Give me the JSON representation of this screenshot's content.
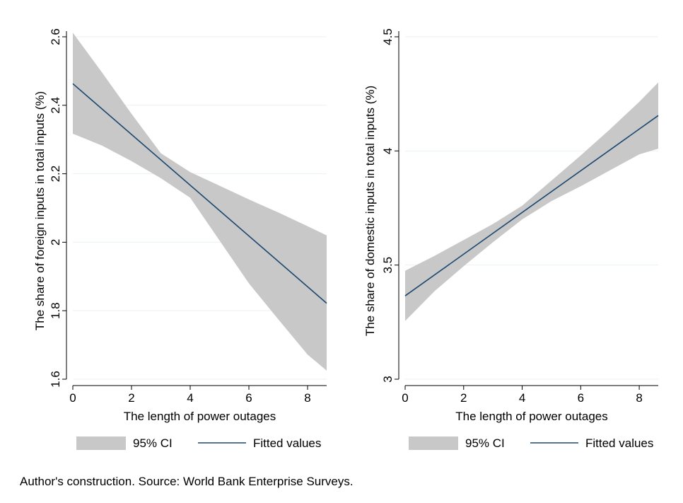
{
  "figure": {
    "note": "Author's construction. Source: World Bank Enterprise Surveys.",
    "colors": {
      "band": "#c8c8c8",
      "line": "#1a476f",
      "grid": "#eaf2f3",
      "axis": "#000000"
    }
  },
  "chart_data": [
    {
      "type": "line",
      "title": "",
      "xlabel": "The length of power outages",
      "ylabel": "The share of foreign inputs in total inputs (%)",
      "xlim": [
        0,
        8.65
      ],
      "ylim": [
        1.6,
        2.6
      ],
      "xticks": [
        0,
        2,
        4,
        6,
        8
      ],
      "yticks": [
        1.6,
        1.8,
        2,
        2.2,
        2.4,
        2.6
      ],
      "xtick_labels": [
        "0",
        "2",
        "4",
        "6",
        "8"
      ],
      "ytick_labels": [
        "1.6",
        "1.8",
        "2",
        "2.2",
        "2.4",
        "2.6"
      ],
      "grid": "horizontal",
      "legend_position": "bottom",
      "legend": {
        "band_label": "95% CI",
        "line_label": "Fitted values"
      },
      "series": [
        {
          "name": "Fitted values",
          "kind": "line",
          "x": [
            0,
            8.65
          ],
          "y": [
            2.463,
            1.822
          ]
        }
      ],
      "ci_band": {
        "name": "95% CI",
        "x": [
          0,
          1,
          2,
          3,
          4,
          5,
          6,
          7,
          8,
          8.65
        ],
        "upper": [
          2.612,
          2.495,
          2.375,
          2.26,
          2.205,
          2.165,
          2.125,
          2.087,
          2.047,
          2.02
        ],
        "lower": [
          2.317,
          2.282,
          2.237,
          2.187,
          2.13,
          2.005,
          1.88,
          1.775,
          1.672,
          1.625
        ]
      }
    },
    {
      "type": "line",
      "title": "",
      "xlabel": "The length of power outages",
      "ylabel": "The share of domestic inputs in total inputs (%)",
      "xlim": [
        0,
        8.65
      ],
      "ylim": [
        3,
        4.5
      ],
      "xticks": [
        0,
        2,
        4,
        6,
        8
      ],
      "yticks": [
        3,
        3.5,
        4,
        4.5
      ],
      "xtick_labels": [
        "0",
        "2",
        "4",
        "6",
        "8"
      ],
      "ytick_labels": [
        "3",
        "3.5",
        "4",
        "4.5"
      ],
      "grid": "horizontal",
      "legend_position": "bottom",
      "legend": {
        "band_label": "95% CI",
        "line_label": "Fitted values"
      },
      "series": [
        {
          "name": "Fitted values",
          "kind": "line",
          "x": [
            0,
            8.65
          ],
          "y": [
            3.365,
            4.155
          ]
        }
      ],
      "ci_band": {
        "name": "95% CI",
        "x": [
          0,
          1,
          2,
          3,
          4,
          5,
          6,
          7,
          8,
          8.65
        ],
        "upper": [
          3.475,
          3.54,
          3.61,
          3.68,
          3.76,
          3.87,
          3.98,
          4.095,
          4.215,
          4.3
        ],
        "lower": [
          3.255,
          3.385,
          3.495,
          3.6,
          3.7,
          3.78,
          3.845,
          3.915,
          3.985,
          4.01
        ]
      }
    }
  ]
}
